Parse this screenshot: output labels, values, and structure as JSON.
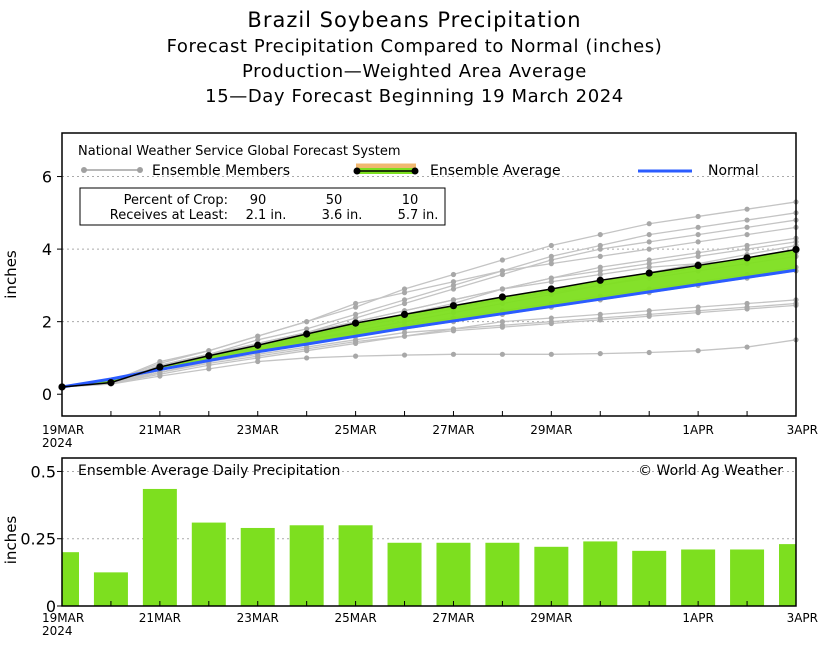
{
  "title": "Brazil Soybeans Precipitation",
  "subtitle1": "Forecast Precipitation Compared to Normal (inches)",
  "subtitle2": "Production—Weighted Area Average",
  "subtitle3": "15—Day Forecast Beginning 19 March 2024",
  "colors": {
    "ensemble_avg": "#7ddf1f",
    "normal": "#2b5cff",
    "members": "#b8b8b8",
    "band_outline": "#f0b870"
  },
  "chart_data": [
    {
      "type": "line",
      "ylabel": "inches",
      "ylim": [
        -0.6,
        7.2
      ],
      "yticks": [
        0,
        2,
        4,
        6
      ],
      "x_tick_labels": [
        {
          "day": 0,
          "label": "19MAR",
          "sub": "2024"
        },
        {
          "day": 2,
          "label": "21MAR"
        },
        {
          "day": 4,
          "label": "23MAR"
        },
        {
          "day": 6,
          "label": "25MAR"
        },
        {
          "day": 8,
          "label": "27MAR"
        },
        {
          "day": 10,
          "label": "29MAR"
        },
        {
          "day": 13,
          "label": "1APR"
        },
        {
          "day": 15,
          "label": "3APR"
        }
      ],
      "legend": {
        "header": "National Weather Service Global Forecast System",
        "members_label": "Ensemble Members",
        "average_label": "Ensemble Average",
        "normal_label": "Normal"
      },
      "percent_table": {
        "row1_label": "Percent of Crop:",
        "row1_values": [
          "90",
          "50",
          "10"
        ],
        "row2_label": "Receives at Least:",
        "row2_values": [
          "2.1 in.",
          "3.6 in.",
          "5.7 in."
        ]
      },
      "x": [
        0,
        1,
        2,
        3,
        4,
        5,
        6,
        7,
        8,
        9,
        10,
        11,
        12,
        13,
        14,
        15
      ],
      "series": [
        {
          "name": "Ensemble Average",
          "values": [
            0.2,
            0.32,
            0.75,
            1.06,
            1.35,
            1.66,
            1.96,
            2.2,
            2.44,
            2.68,
            2.9,
            3.14,
            3.34,
            3.55,
            3.76,
            3.99
          ]
        },
        {
          "name": "Normal",
          "values": [
            0.2,
            0.42,
            0.68,
            0.93,
            1.17,
            1.38,
            1.6,
            1.82,
            2.02,
            2.22,
            2.42,
            2.62,
            2.82,
            3.02,
            3.22,
            3.42
          ]
        }
      ],
      "members": [
        [
          0.2,
          0.3,
          0.6,
          0.9,
          1.2,
          1.6,
          1.9,
          2.2,
          2.5,
          2.9,
          3.2,
          3.5,
          3.7,
          3.9,
          4.1,
          4.3
        ],
        [
          0.2,
          0.3,
          0.7,
          1.0,
          1.3,
          1.7,
          2.1,
          2.5,
          2.9,
          3.3,
          3.7,
          4.0,
          4.2,
          4.4,
          4.6,
          4.8
        ],
        [
          0.2,
          0.35,
          0.9,
          1.2,
          1.6,
          2.0,
          2.4,
          2.9,
          3.3,
          3.7,
          4.1,
          4.4,
          4.7,
          4.9,
          5.1,
          5.3
        ],
        [
          0.2,
          0.3,
          0.8,
          1.1,
          1.5,
          1.8,
          2.2,
          2.6,
          3.0,
          3.4,
          3.8,
          4.1,
          4.4,
          4.6,
          4.8,
          5.0
        ],
        [
          0.2,
          0.3,
          0.7,
          1.0,
          1.4,
          1.7,
          2.0,
          2.3,
          2.6,
          2.9,
          3.2,
          3.4,
          3.6,
          3.8,
          4.0,
          4.2
        ],
        [
          0.2,
          0.3,
          0.6,
          0.9,
          1.1,
          1.3,
          1.5,
          1.7,
          1.8,
          1.9,
          2.0,
          2.1,
          2.2,
          2.3,
          2.4,
          2.5
        ],
        [
          0.2,
          0.28,
          0.5,
          0.7,
          0.9,
          1.0,
          1.05,
          1.08,
          1.1,
          1.1,
          1.1,
          1.12,
          1.15,
          1.2,
          1.3,
          1.5
        ],
        [
          0.2,
          0.3,
          0.65,
          0.95,
          1.2,
          1.4,
          1.6,
          1.8,
          2.0,
          2.2,
          2.4,
          2.6,
          2.8,
          3.0,
          3.2,
          3.4
        ],
        [
          0.2,
          0.3,
          0.7,
          1.0,
          1.3,
          1.6,
          1.9,
          2.2,
          2.4,
          2.6,
          2.8,
          3.0,
          3.2,
          3.4,
          3.6,
          3.8
        ],
        [
          0.2,
          0.32,
          0.8,
          1.1,
          1.4,
          1.7,
          2.0,
          2.3,
          2.6,
          2.9,
          3.1,
          3.3,
          3.5,
          3.6,
          3.7,
          3.9
        ],
        [
          0.2,
          0.3,
          0.55,
          0.8,
          1.0,
          1.2,
          1.4,
          1.6,
          1.8,
          2.0,
          2.1,
          2.2,
          2.3,
          2.4,
          2.5,
          2.6
        ],
        [
          0.2,
          0.3,
          0.75,
          1.05,
          1.3,
          1.5,
          1.7,
          1.9,
          2.1,
          2.3,
          2.5,
          2.7,
          2.9,
          3.1,
          3.3,
          3.5
        ],
        [
          0.2,
          0.35,
          0.85,
          1.2,
          1.6,
          2.0,
          2.5,
          2.8,
          3.1,
          3.4,
          3.6,
          3.8,
          4.0,
          4.2,
          4.4,
          4.6
        ],
        [
          0.2,
          0.3,
          0.6,
          0.85,
          1.05,
          1.25,
          1.45,
          1.6,
          1.75,
          1.85,
          1.95,
          2.05,
          2.15,
          2.25,
          2.35,
          2.45
        ],
        [
          0.2,
          0.3,
          0.7,
          1.0,
          1.25,
          1.5,
          1.75,
          2.0,
          2.25,
          2.5,
          2.75,
          3.0,
          3.25,
          3.5,
          3.75,
          4.0
        ],
        [
          0.2,
          0.32,
          0.8,
          1.1,
          1.35,
          1.6,
          1.85,
          2.1,
          2.35,
          2.6,
          2.85,
          3.1,
          3.35,
          3.6,
          3.85,
          4.1
        ]
      ]
    },
    {
      "type": "bar",
      "title": "Ensemble Average Daily Precipitation",
      "annotation": "© World Ag Weather",
      "ylabel": "inches",
      "ylim": [
        0,
        0.55
      ],
      "yticks": [
        {
          "v": 0,
          "label": "0"
        },
        {
          "v": 0.25,
          "label": "0.25"
        },
        {
          "v": 0.5,
          "label": "0.5"
        }
      ],
      "x_tick_labels": [
        {
          "day": 0,
          "label": "19MAR",
          "sub": "2024"
        },
        {
          "day": 2,
          "label": "21MAR"
        },
        {
          "day": 4,
          "label": "23MAR"
        },
        {
          "day": 6,
          "label": "25MAR"
        },
        {
          "day": 8,
          "label": "27MAR"
        },
        {
          "day": 10,
          "label": "29MAR"
        },
        {
          "day": 13,
          "label": "1APR"
        },
        {
          "day": 15,
          "label": "3APR"
        }
      ],
      "x": [
        0,
        1,
        2,
        3,
        4,
        5,
        6,
        7,
        8,
        9,
        10,
        11,
        12,
        13,
        14,
        15
      ],
      "values": [
        0.2,
        0.125,
        0.435,
        0.31,
        0.29,
        0.3,
        0.3,
        0.235,
        0.235,
        0.235,
        0.22,
        0.24,
        0.205,
        0.21,
        0.21,
        0.23
      ]
    }
  ]
}
